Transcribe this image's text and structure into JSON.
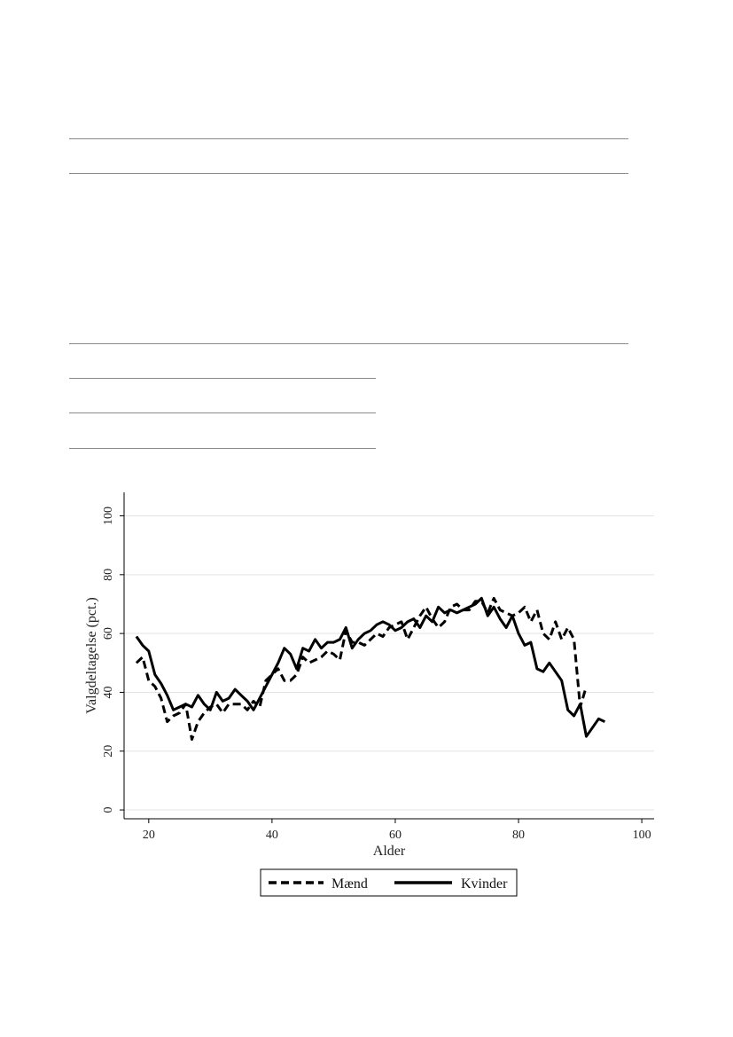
{
  "chart_data": {
    "type": "line",
    "xlabel": "Alder",
    "ylabel": "Valgdeltagelse (pct.)",
    "xlim": [
      16,
      102
    ],
    "ylim": [
      -3,
      108
    ],
    "xticks": [
      20,
      40,
      60,
      80,
      100
    ],
    "yticks": [
      0,
      20,
      40,
      60,
      80,
      100
    ],
    "grid": "horizontal",
    "legend_position": "bottom",
    "series": [
      {
        "name": "Mænd",
        "style": "dashed",
        "x": [
          18,
          19,
          20,
          21,
          22,
          23,
          24,
          25,
          26,
          27,
          28,
          29,
          30,
          31,
          32,
          33,
          34,
          35,
          36,
          37,
          38,
          39,
          40,
          41,
          42,
          43,
          44,
          45,
          46,
          47,
          48,
          49,
          50,
          51,
          52,
          53,
          54,
          55,
          56,
          57,
          58,
          59,
          60,
          61,
          62,
          63,
          64,
          65,
          66,
          67,
          68,
          69,
          70,
          71,
          72,
          73,
          74,
          75,
          76,
          77,
          78,
          79,
          80,
          81,
          82,
          83,
          84,
          85,
          86,
          87,
          88,
          89,
          90,
          91
        ],
        "y": [
          50,
          52,
          44,
          42,
          38,
          30,
          32,
          33,
          36,
          24,
          30,
          33,
          35,
          36,
          33,
          36,
          36,
          36,
          34,
          37,
          35,
          44,
          46,
          48,
          44,
          44,
          46,
          52,
          50,
          51,
          52,
          54,
          53,
          51,
          61,
          57,
          57,
          56,
          58,
          60,
          59,
          62,
          63,
          64,
          58,
          62,
          66,
          69,
          65,
          62,
          64,
          69,
          70,
          68,
          68,
          71,
          71,
          67,
          72,
          68,
          67,
          66,
          67,
          69,
          64,
          68,
          60,
          58,
          64,
          58,
          62,
          58,
          35,
          42
        ]
      },
      {
        "name": "Kvinder",
        "style": "solid",
        "x": [
          18,
          19,
          20,
          21,
          22,
          23,
          24,
          25,
          26,
          27,
          28,
          29,
          30,
          31,
          32,
          33,
          34,
          35,
          36,
          37,
          38,
          39,
          40,
          41,
          42,
          43,
          44,
          45,
          46,
          47,
          48,
          49,
          50,
          51,
          52,
          53,
          54,
          55,
          56,
          57,
          58,
          59,
          60,
          61,
          62,
          63,
          64,
          65,
          66,
          67,
          68,
          69,
          70,
          71,
          72,
          73,
          74,
          75,
          76,
          77,
          78,
          79,
          80,
          81,
          82,
          83,
          84,
          85,
          86,
          87,
          88,
          89,
          90,
          91,
          92,
          93,
          94
        ],
        "y": [
          59,
          56,
          54,
          46,
          43,
          39,
          34,
          35,
          36,
          35,
          39,
          36,
          34,
          40,
          37,
          38,
          41,
          39,
          37,
          34,
          38,
          42,
          46,
          50,
          55,
          53,
          48,
          55,
          54,
          58,
          55,
          57,
          57,
          58,
          62,
          55,
          58,
          60,
          61,
          63,
          64,
          63,
          61,
          62,
          64,
          65,
          62,
          66,
          64,
          69,
          67,
          68,
          67,
          68,
          69,
          70,
          72,
          66,
          69,
          65,
          62,
          66,
          60,
          56,
          57,
          48,
          47,
          50,
          47,
          44,
          34,
          32,
          36,
          25,
          28,
          31,
          30
        ]
      }
    ]
  }
}
